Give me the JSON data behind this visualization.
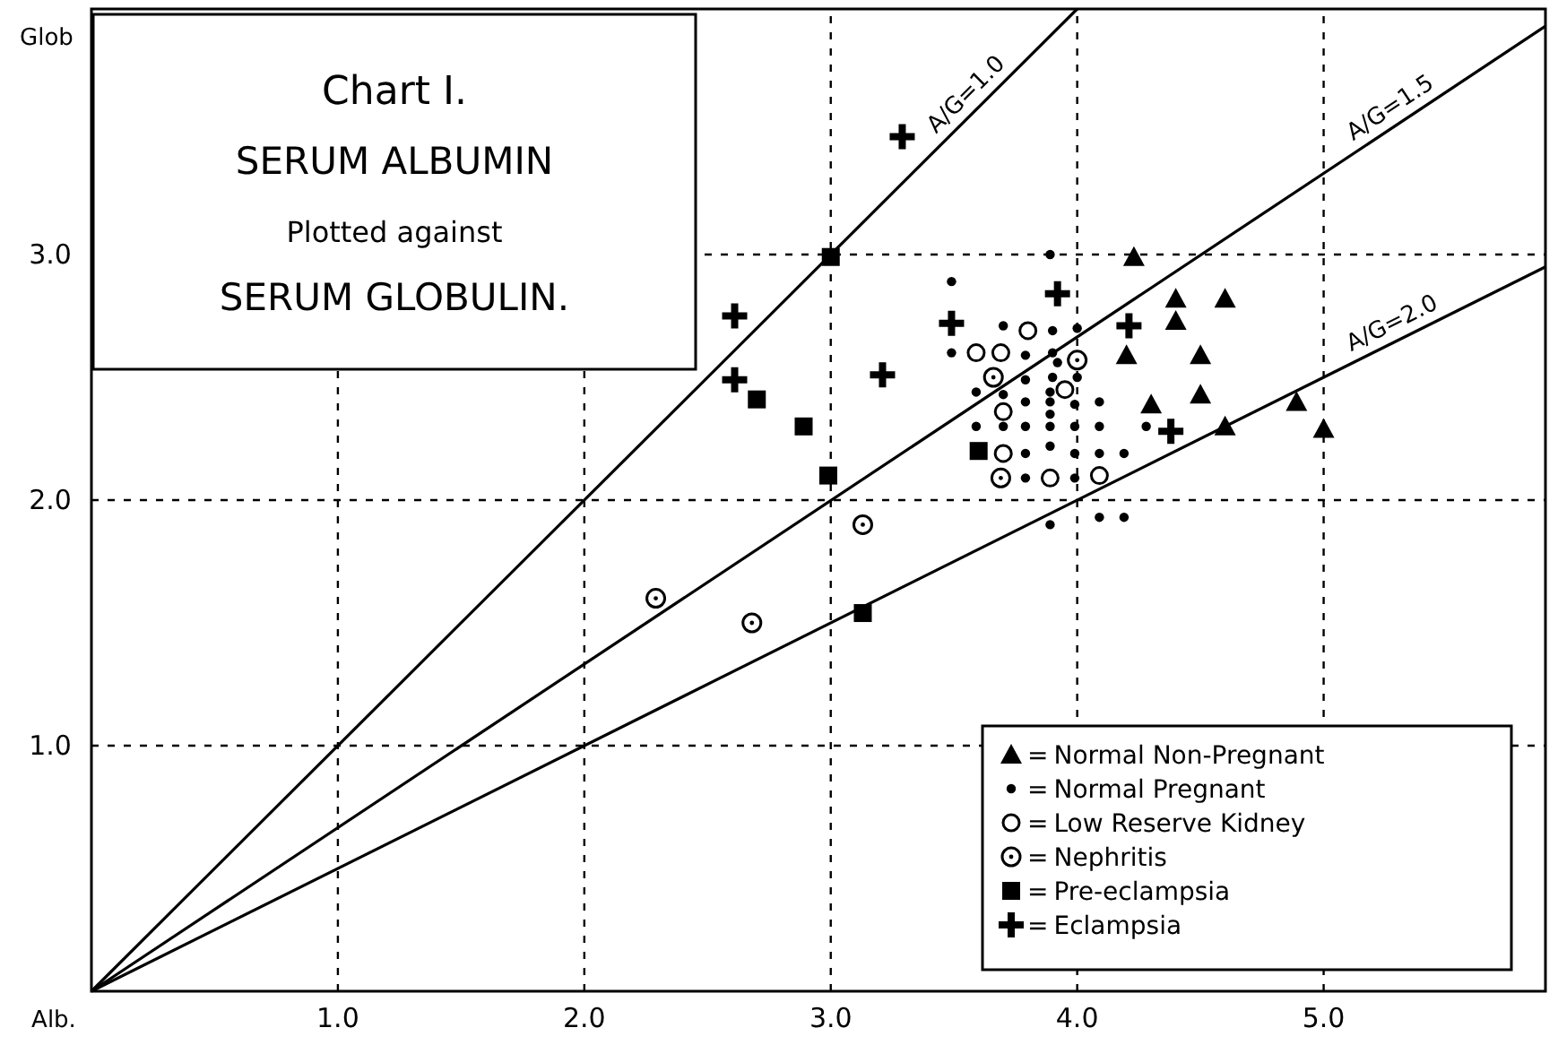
{
  "chart_data": {
    "type": "scatter",
    "title": "Chart I.",
    "annotations": [
      "SERUM ALBUMIN",
      "Plotted against",
      "SERUM GLOBULIN.",
      "="
    ],
    "xlabel": "Alb.",
    "ylabel": "Glob",
    "xlim": [
      0,
      5.9
    ],
    "ylim": [
      0,
      4.0
    ],
    "xticks": [
      {
        "value": 1,
        "label": "1.0"
      },
      {
        "value": 2,
        "label": "2.0"
      },
      {
        "value": 3,
        "label": "3.0"
      },
      {
        "value": 4,
        "label": "4.0"
      },
      {
        "value": 5,
        "label": "5.0"
      }
    ],
    "yticks": [
      {
        "value": 1,
        "label": "1.0"
      },
      {
        "value": 2,
        "label": "2.0"
      },
      {
        "value": 3,
        "label": "3.0"
      }
    ],
    "grid": true,
    "legend": "bottom right",
    "series": [
      {
        "name": "A/G=1.0",
        "type": "line",
        "line_style": "solid",
        "color": "#000000",
        "x": [
          0,
          4.0
        ],
        "values": [
          0,
          4.0
        ]
      },
      {
        "name": "A/G=1.5",
        "type": "line",
        "line_style": "solid",
        "color": "#000000",
        "x": [
          0,
          5.9
        ],
        "values": [
          0,
          3.93
        ]
      },
      {
        "name": "A/G=2.0",
        "type": "line",
        "line_style": "solid",
        "color": "#000000",
        "x": [
          0,
          5.9
        ],
        "values": [
          0,
          2.95
        ]
      },
      {
        "name": "Normal Non-Pregnant",
        "marker": "triangle",
        "color": "#000000",
        "x": [
          4.23,
          4.4,
          4.6,
          4.4,
          4.2,
          4.5,
          4.3,
          4.5,
          4.6,
          4.89,
          5.0
        ],
        "values": [
          2.99,
          2.82,
          2.82,
          2.73,
          2.59,
          2.59,
          2.39,
          2.43,
          2.3,
          2.4,
          2.29
        ]
      },
      {
        "name": "Normal Pregnant",
        "marker": "circle",
        "color": "#000000",
        "x": [
          3.89,
          3.49,
          3.7,
          3.9,
          4.0,
          3.49,
          3.79,
          3.9,
          3.92,
          3.79,
          3.9,
          4.0,
          3.59,
          3.7,
          3.89,
          3.79,
          3.89,
          3.99,
          4.09,
          3.89,
          3.59,
          3.7,
          3.79,
          3.89,
          3.99,
          4.09,
          4.28,
          3.79,
          3.89,
          3.99,
          4.09,
          4.19,
          3.79,
          3.99,
          3.89,
          4.09,
          4.19
        ],
        "values": [
          3.0,
          2.89,
          2.71,
          2.69,
          2.7,
          2.6,
          2.59,
          2.6,
          2.56,
          2.49,
          2.5,
          2.5,
          2.44,
          2.43,
          2.44,
          2.4,
          2.4,
          2.39,
          2.4,
          2.35,
          2.3,
          2.3,
          2.3,
          2.3,
          2.3,
          2.3,
          2.3,
          2.19,
          2.22,
          2.19,
          2.19,
          2.19,
          2.09,
          2.09,
          1.9,
          1.93,
          1.93
        ]
      },
      {
        "name": "Low Reserve Kidney",
        "marker": "circle",
        "color": "#000000",
        "x": [
          3.8,
          3.59,
          3.69,
          3.95,
          3.7,
          3.7,
          3.89,
          4.09
        ],
        "values": [
          2.69,
          2.6,
          2.6,
          2.45,
          2.36,
          2.19,
          2.09,
          2.1
        ]
      },
      {
        "name": "Nephritis",
        "marker": "circle",
        "color": "#000000",
        "x": [
          3.13,
          2.29,
          2.68,
          3.66,
          4.0,
          3.69
        ],
        "values": [
          1.9,
          1.6,
          1.5,
          2.5,
          2.57,
          2.09
        ]
      },
      {
        "name": "Pre-eclampsia",
        "marker": "square",
        "color": "#000000",
        "x": [
          3.0,
          2.7,
          2.89,
          2.99,
          3.13,
          3.6
        ],
        "values": [
          2.99,
          2.41,
          2.3,
          2.1,
          1.54,
          2.2
        ]
      },
      {
        "name": "Eclampsia",
        "marker": "cross",
        "color": "#000000",
        "x": [
          3.29,
          2.61,
          2.61,
          3.21,
          3.49,
          3.92,
          4.21,
          4.38
        ],
        "values": [
          3.48,
          2.75,
          2.49,
          2.51,
          2.72,
          2.84,
          2.71,
          2.28
        ]
      }
    ]
  }
}
